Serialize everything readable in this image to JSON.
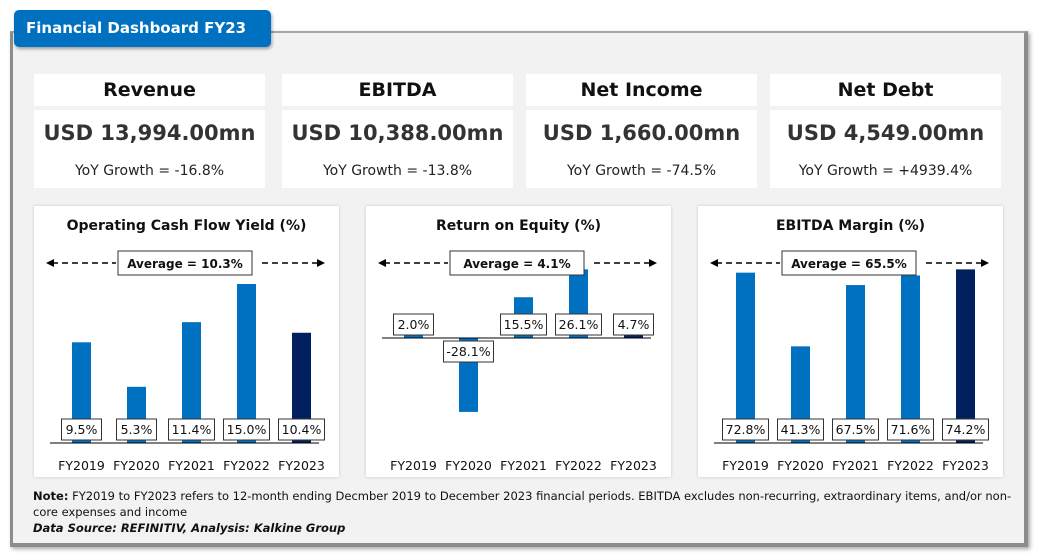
{
  "title": "Financial Dashboard FY23",
  "colors": {
    "accent": "#0070c0",
    "bar_regular": "#0070c0",
    "bar_highlight": "#002060",
    "frame_bg": "#f2f2f2"
  },
  "kpis": [
    {
      "label": "Revenue",
      "value": "USD 13,994.00mn",
      "growth": "YoY Growth = -16.8%"
    },
    {
      "label": "EBITDA",
      "value": "USD 10,388.00mn",
      "growth": "YoY Growth = -13.8%"
    },
    {
      "label": "Net Income",
      "value": "USD 1,660.00mn",
      "growth": "YoY Growth = -74.5%"
    },
    {
      "label": "Net Debt",
      "value": "USD 4,549.00mn",
      "growth": "YoY Growth = +4939.4%"
    }
  ],
  "chart_data": [
    {
      "type": "bar",
      "title": "Operating Cash Flow Yield (%)",
      "categories": [
        "FY2019",
        "FY2020",
        "FY2021",
        "FY2022",
        "FY2023"
      ],
      "values": [
        9.5,
        5.3,
        11.4,
        15.0,
        10.4
      ],
      "labels": [
        "9.5%",
        "5.3%",
        "11.4%",
        "15.0%",
        "10.4%"
      ],
      "highlight_index": 4,
      "average_label": "Average = 10.3%",
      "average": 10.3,
      "xlabel": "",
      "ylabel": "",
      "ylim": [
        0,
        15
      ],
      "grid": false,
      "legend": "none"
    },
    {
      "type": "bar",
      "title": "Return on Equity (%)",
      "categories": [
        "FY2019",
        "FY2020",
        "FY2021",
        "FY2022",
        "FY2023"
      ],
      "values": [
        2.0,
        -28.1,
        15.5,
        26.1,
        4.7
      ],
      "labels": [
        "2.0%",
        "-28.1%",
        "15.5%",
        "26.1%",
        "4.7%"
      ],
      "highlight_index": 4,
      "average_label": "Average = 4.1%",
      "average": 4.1,
      "xlabel": "",
      "ylabel": "",
      "ylim": [
        -40,
        30
      ],
      "grid": false,
      "legend": "none"
    },
    {
      "type": "bar",
      "title": "EBITDA Margin (%)",
      "categories": [
        "FY2019",
        "FY2020",
        "FY2021",
        "FY2022",
        "FY2023"
      ],
      "values": [
        72.8,
        41.3,
        67.5,
        71.6,
        74.2
      ],
      "labels": [
        "72.8%",
        "41.3%",
        "67.5%",
        "71.6%",
        "74.2%"
      ],
      "highlight_index": 4,
      "average_label": "Average = 65.5%",
      "average": 65.5,
      "xlabel": "",
      "ylabel": "",
      "ylim": [
        0,
        74.2
      ],
      "grid": false,
      "legend": "none"
    }
  ],
  "note": {
    "label": "Note:",
    "text": " FY2019 to FY2023 refers to 12-month ending Decmber 2019 to December 2023 financial periods. EBITDA excludes non-recurring, extraordinary items, and/or non-core expenses and income"
  },
  "source": "Data Source: REFINITIV, Analysis: Kalkine Group"
}
